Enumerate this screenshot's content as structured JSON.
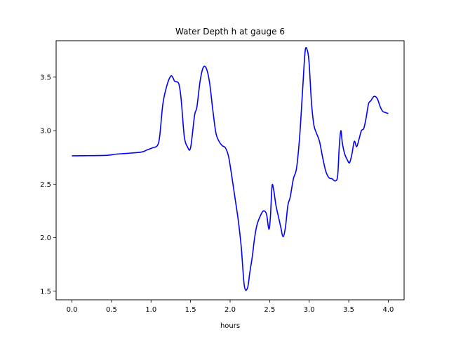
{
  "chart_data": {
    "type": "line",
    "title": "Water Depth h at gauge 6",
    "xlabel": "hours",
    "ylabel": "",
    "xlim": [
      -0.2,
      4.2
    ],
    "ylim": [
      1.42,
      3.84
    ],
    "xticks": [
      0.0,
      0.5,
      1.0,
      1.5,
      2.0,
      2.5,
      3.0,
      3.5,
      4.0
    ],
    "xtick_labels": [
      "0.0",
      "0.5",
      "1.0",
      "1.5",
      "2.0",
      "2.5",
      "3.0",
      "3.5",
      "4.0"
    ],
    "yticks": [
      1.5,
      2.0,
      2.5,
      3.0,
      3.5
    ],
    "ytick_labels": [
      "1.5",
      "2.0",
      "2.5",
      "3.0",
      "3.5"
    ],
    "grid": false,
    "series": [
      {
        "name": "",
        "color": "#0000ff",
        "x": [
          0.0,
          0.2,
          0.45,
          0.55,
          0.7,
          0.88,
          0.95,
          1.02,
          1.08,
          1.11,
          1.15,
          1.2,
          1.25,
          1.28,
          1.3,
          1.35,
          1.38,
          1.42,
          1.46,
          1.5,
          1.55,
          1.58,
          1.62,
          1.66,
          1.7,
          1.74,
          1.78,
          1.82,
          1.86,
          1.9,
          1.94,
          1.98,
          2.02,
          2.06,
          2.1,
          2.14,
          2.18,
          2.22,
          2.25,
          2.28,
          2.31,
          2.34,
          2.38,
          2.42,
          2.46,
          2.49,
          2.51,
          2.53,
          2.55,
          2.58,
          2.61,
          2.64,
          2.67,
          2.7,
          2.73,
          2.76,
          2.8,
          2.84,
          2.88,
          2.92,
          2.95,
          2.98,
          3.0,
          3.03,
          3.06,
          3.09,
          3.13,
          3.17,
          3.21,
          3.25,
          3.29,
          3.33,
          3.36,
          3.38,
          3.4,
          3.42,
          3.45,
          3.48,
          3.51,
          3.54,
          3.57,
          3.6,
          3.63,
          3.66,
          3.69,
          3.72,
          3.75,
          3.78,
          3.82,
          3.86,
          3.9,
          3.93,
          3.96,
          4.0
        ],
        "y": [
          2.765,
          2.766,
          2.77,
          2.78,
          2.788,
          2.8,
          2.82,
          2.84,
          2.86,
          2.95,
          3.25,
          3.42,
          3.51,
          3.49,
          3.46,
          3.44,
          3.3,
          2.95,
          2.85,
          2.84,
          3.14,
          3.22,
          3.46,
          3.59,
          3.58,
          3.45,
          3.2,
          2.98,
          2.9,
          2.86,
          2.84,
          2.76,
          2.58,
          2.38,
          2.18,
          1.92,
          1.55,
          1.53,
          1.68,
          1.82,
          2.0,
          2.12,
          2.2,
          2.25,
          2.22,
          2.08,
          2.2,
          2.48,
          2.45,
          2.3,
          2.2,
          2.1,
          2.01,
          2.1,
          2.3,
          2.38,
          2.55,
          2.65,
          2.95,
          3.42,
          3.75,
          3.74,
          3.62,
          3.25,
          3.05,
          2.98,
          2.9,
          2.75,
          2.62,
          2.56,
          2.55,
          2.53,
          2.58,
          2.85,
          3.0,
          2.88,
          2.78,
          2.73,
          2.7,
          2.78,
          2.9,
          2.85,
          2.92,
          3.0,
          3.02,
          3.12,
          3.25,
          3.28,
          3.32,
          3.3,
          3.22,
          3.18,
          3.17,
          3.16
        ]
      }
    ]
  }
}
